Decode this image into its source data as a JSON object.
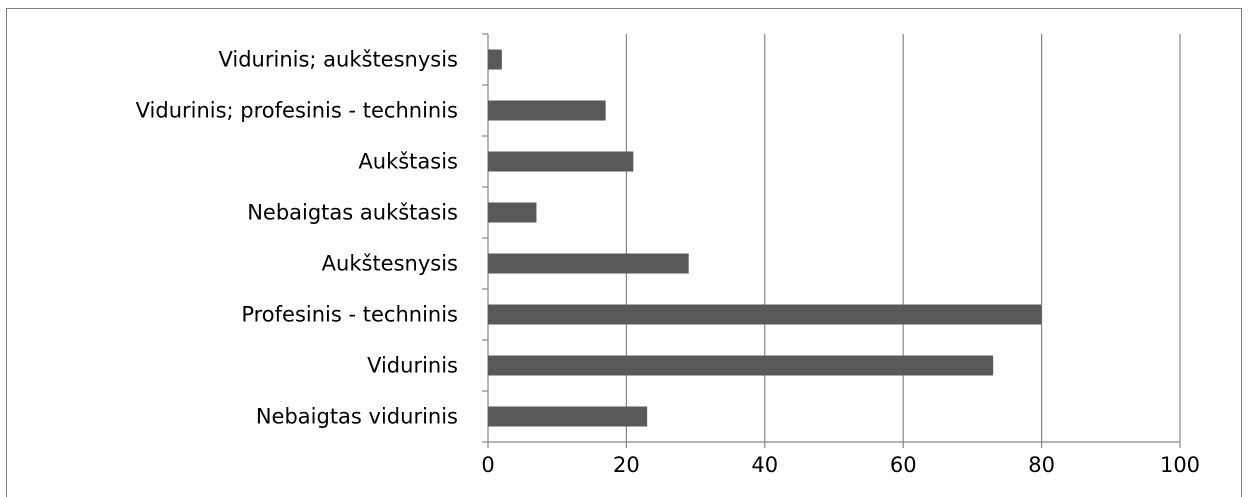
{
  "chart_data": {
    "type": "bar",
    "orientation": "horizontal",
    "categories": [
      "Nebaigtas vidurinis",
      "Vidurinis",
      "Profesinis - techninis",
      "Aukštesnysis",
      "Nebaigtas aukštasis",
      "Aukštasis",
      "Vidurinis; profesinis - techninis",
      "Vidurinis; aukštesnysis"
    ],
    "values": [
      23,
      73,
      80,
      29,
      7,
      21,
      17,
      2
    ],
    "xlim": [
      0,
      100
    ],
    "x_ticks": [
      0,
      20,
      40,
      60,
      80,
      100
    ],
    "grid": true,
    "legend": "none",
    "bar_color": "#595959",
    "grid_color": "#868686",
    "title": "",
    "xlabel": "",
    "ylabel": ""
  }
}
